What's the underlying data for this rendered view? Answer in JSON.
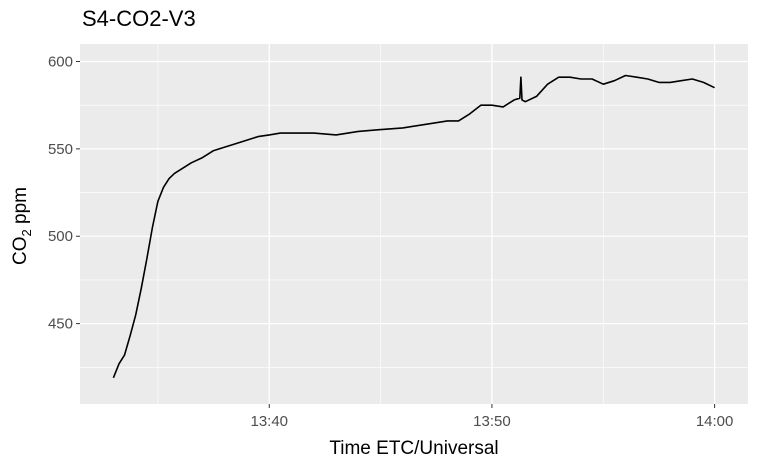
{
  "chart_data": {
    "type": "line",
    "title": "S4-CO2-V3",
    "xlabel": "Time ETC/Universal",
    "ylabel": {
      "main": "CO",
      "sub": "2",
      "rest": " ppm"
    },
    "x_unit": "time HH:MM",
    "xlim": [
      "13:31:30",
      "14:01:30"
    ],
    "ylim": [
      404,
      610
    ],
    "x_ticks": [
      "13:40",
      "13:50",
      "14:00"
    ],
    "y_ticks": [
      450,
      500,
      550,
      600
    ],
    "grid": true,
    "background": "#ebebeb",
    "line_color": "#000000",
    "series": [
      {
        "x": [
          "13:33:00",
          "13:33:15",
          "13:33:30",
          "13:33:45",
          "13:34:00",
          "13:34:15",
          "13:34:30",
          "13:34:45",
          "13:35:00",
          "13:35:15",
          "13:35:30",
          "13:35:45",
          "13:36:00",
          "13:36:30",
          "13:37:00",
          "13:37:30",
          "13:38:00",
          "13:38:30",
          "13:39:00",
          "13:39:30",
          "13:40:00",
          "13:40:30",
          "13:41:00",
          "13:42:00",
          "13:43:00",
          "13:44:00",
          "13:45:00",
          "13:46:00",
          "13:47:00",
          "13:48:00",
          "13:48:30",
          "13:49:00",
          "13:49:30",
          "13:50:00",
          "13:50:30",
          "13:51:00",
          "13:51:15",
          "13:51:18",
          "13:51:21",
          "13:51:30",
          "13:52:00",
          "13:52:30",
          "13:53:00",
          "13:53:30",
          "13:54:00",
          "13:54:30",
          "13:55:00",
          "13:55:30",
          "13:56:00",
          "13:56:30",
          "13:57:00",
          "13:57:30",
          "13:58:00",
          "13:58:30",
          "13:59:00",
          "13:59:30",
          "14:00:00"
        ],
        "y": [
          419,
          427,
          432,
          443,
          455,
          470,
          487,
          505,
          520,
          528,
          533,
          536,
          538,
          542,
          545,
          549,
          551,
          553,
          555,
          557,
          558,
          559,
          559,
          559,
          558,
          560,
          561,
          562,
          564,
          566,
          566,
          570,
          575,
          575,
          574,
          578,
          579,
          591,
          578,
          577,
          580,
          587,
          591,
          591,
          590,
          590,
          587,
          589,
          592,
          591,
          590,
          588,
          588,
          589,
          590,
          588,
          585
        ]
      }
    ]
  }
}
